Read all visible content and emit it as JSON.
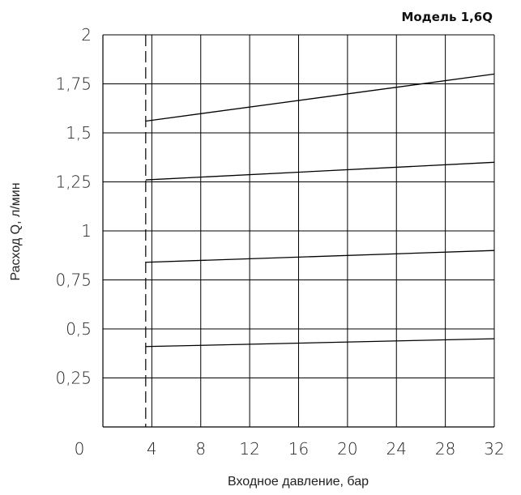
{
  "chart_data": {
    "type": "line",
    "title": "Модель 1,6Q",
    "xlabel": "Входное давление, бар",
    "ylabel": "Расход Q, л/мин",
    "xlim": [
      0,
      32
    ],
    "ylim": [
      0,
      2
    ],
    "x_ticks": [
      {
        "value": 4,
        "label": "4"
      },
      {
        "value": 8,
        "label": "8"
      },
      {
        "value": 12,
        "label": "12"
      },
      {
        "value": 16,
        "label": "16"
      },
      {
        "value": 20,
        "label": "20"
      },
      {
        "value": 24,
        "label": "24"
      },
      {
        "value": 28,
        "label": "28"
      },
      {
        "value": 32,
        "label": "32"
      }
    ],
    "origin_label": "0",
    "y_ticks": [
      {
        "value": 0.25,
        "label": "0,25"
      },
      {
        "value": 0.5,
        "label": "0,5"
      },
      {
        "value": 0.75,
        "label": "0,75"
      },
      {
        "value": 1,
        "label": "1"
      },
      {
        "value": 1.25,
        "label": "1,25"
      },
      {
        "value": 1.5,
        "label": "1,5"
      },
      {
        "value": 1.75,
        "label": "1,75"
      },
      {
        "value": 2,
        "label": "2"
      }
    ],
    "reference_line": {
      "x": 3.5,
      "style": "dashed"
    },
    "series": [
      {
        "x": [
          3.5,
          32
        ],
        "y": [
          0.41,
          0.45
        ]
      },
      {
        "x": [
          3.5,
          32
        ],
        "y": [
          0.84,
          0.9
        ]
      },
      {
        "x": [
          3.5,
          32
        ],
        "y": [
          1.26,
          1.35
        ]
      },
      {
        "x": [
          3.5,
          32
        ],
        "y": [
          1.56,
          1.8
        ]
      }
    ],
    "grid": true,
    "line_color": "#000000"
  }
}
